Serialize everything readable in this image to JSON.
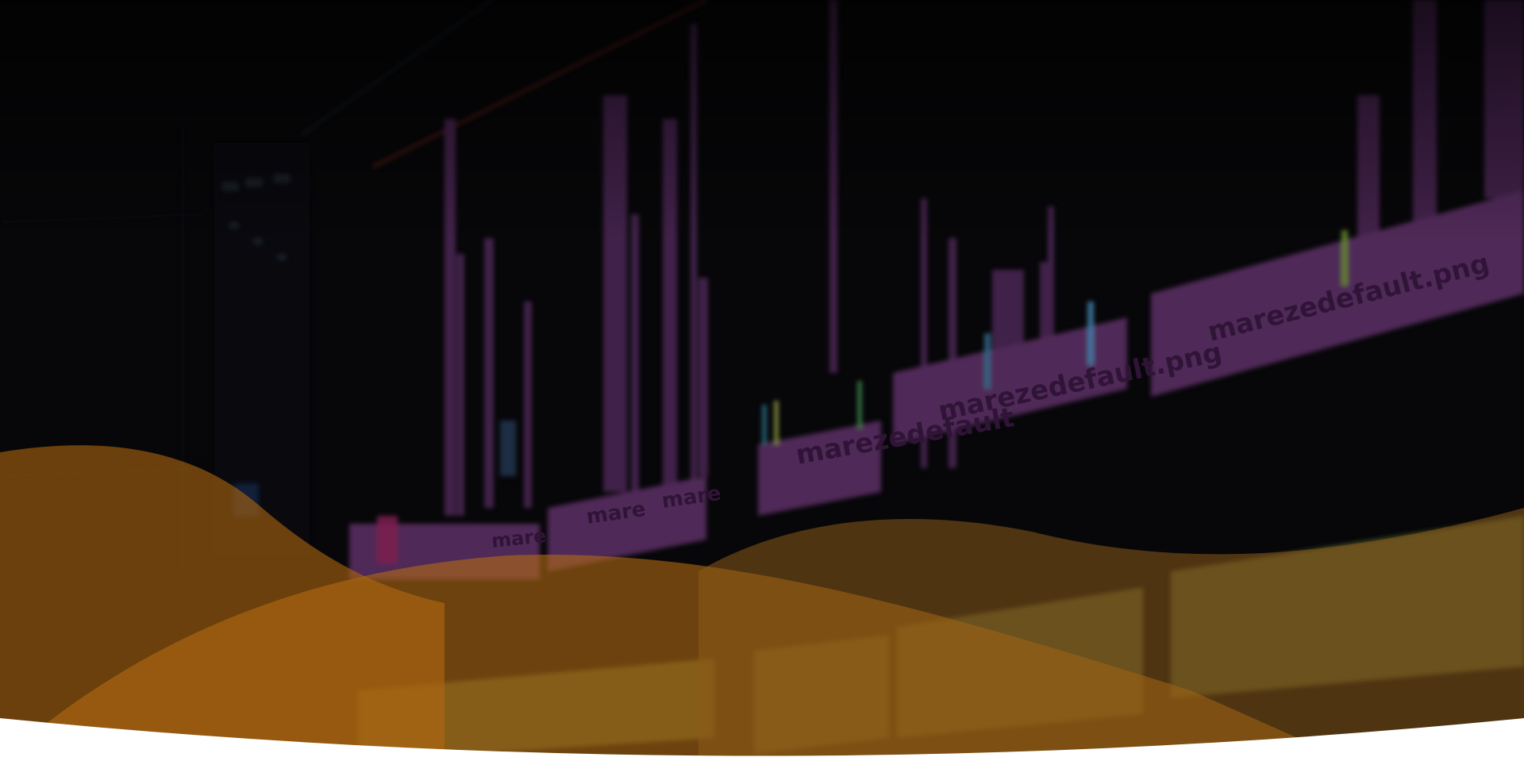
{
  "hero": {
    "background_image": "blurred video editing timeline",
    "clip_labels": [
      {
        "text": "marezedefault.png"
      },
      {
        "text": "marezedefault.png"
      },
      {
        "text": "marezedefault"
      },
      {
        "text": "mare"
      },
      {
        "text": "mare"
      },
      {
        "text": "mare"
      }
    ],
    "colors": {
      "overlay": "#0a0a0c",
      "clip_purple": "#7a3f86",
      "clip_light_purple": "#9a5aa6",
      "wave_orange": "#b36a12",
      "wave_dark_orange": "#7a4a14",
      "audio_green": "#8a8f2e",
      "bottom_white": "#ffffff"
    }
  }
}
